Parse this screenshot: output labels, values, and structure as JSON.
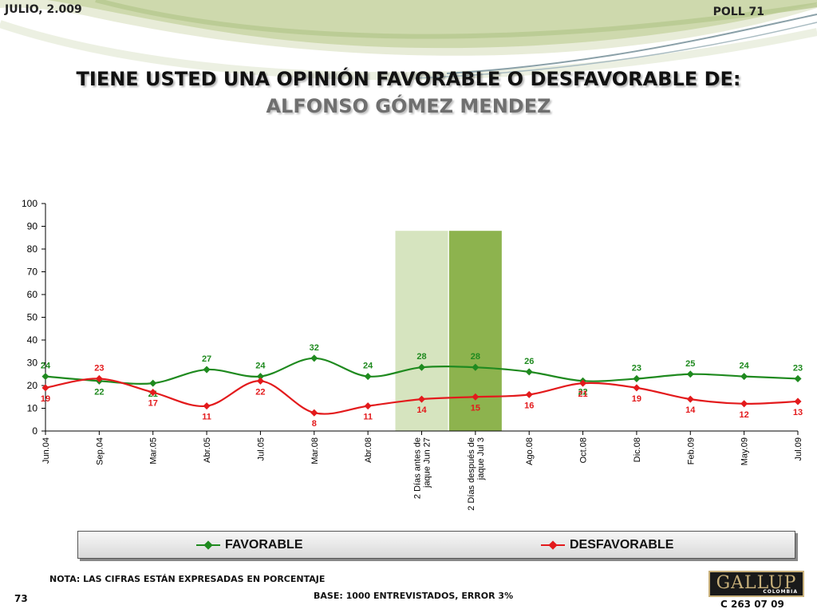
{
  "header": {
    "date": "JULIO, 2.009",
    "poll": "POLL 71"
  },
  "title": "TIENE USTED UNA OPINIÓN FAVORABLE O DESFAVORABLE DE:",
  "subtitle": "ALFONSO GÓMEZ MENDEZ",
  "colors": {
    "favorable": "#1f8a1f",
    "desfavorable": "#e31a1c",
    "highlight_light": "#d6e4bf",
    "highlight_dark": "#8db34e",
    "gridline": "#000000"
  },
  "chart_data": {
    "type": "line",
    "categories": [
      "Jun.04",
      "Sep.04",
      "Mar.05",
      "Abr.05",
      "Jul.05",
      "Mar.08",
      "Abr.08",
      "2 Días antes de jaque Jun 27",
      "2 Días después de jaque Jul 3",
      "Ago.08",
      "Oct.08",
      "Dic.08",
      "Feb.09",
      "May.09",
      "Jul.09"
    ],
    "category_lines": [
      [
        "Jun.04"
      ],
      [
        "Sep.04"
      ],
      [
        "Mar.05"
      ],
      [
        "Abr.05"
      ],
      [
        "Jul.05"
      ],
      [
        "Mar.08"
      ],
      [
        "Abr.08"
      ],
      [
        "2 Días antes de",
        "jaque Jun 27"
      ],
      [
        "2 Días después de",
        "jaque Jul 3"
      ],
      [
        "Ago.08"
      ],
      [
        "Oct.08"
      ],
      [
        "Dic.08"
      ],
      [
        "Feb.09"
      ],
      [
        "May.09"
      ],
      [
        "Jul.09"
      ]
    ],
    "series": [
      {
        "name": "FAVORABLE",
        "color": "#1f8a1f",
        "values": [
          24,
          22,
          21,
          27,
          24,
          32,
          24,
          28,
          28,
          26,
          22,
          23,
          25,
          24,
          23
        ],
        "label_position": [
          "above-left",
          "below",
          "below",
          "above",
          "above",
          "above",
          "above",
          "above",
          "above",
          "above",
          "below",
          "above",
          "above",
          "above",
          "above"
        ]
      },
      {
        "name": "DESFAVORABLE",
        "color": "#e31a1c",
        "values": [
          19,
          23,
          17,
          11,
          22,
          8,
          11,
          14,
          15,
          16,
          21,
          19,
          14,
          12,
          13
        ],
        "label_position": [
          "below-left",
          "above",
          "below",
          "below",
          "below",
          "below",
          "below",
          "below",
          "below",
          "below",
          "below",
          "below",
          "below",
          "below",
          "below"
        ]
      }
    ],
    "highlight_categories": [
      {
        "category": "2 Días antes de jaque Jun 27",
        "color": "#d6e4bf",
        "top_value": 88
      },
      {
        "category": "2 Días después de jaque Jul 3",
        "color": "#8db34e",
        "top_value": 88
      }
    ],
    "ylim": [
      0,
      100
    ],
    "yticks": [
      0,
      10,
      20,
      30,
      40,
      50,
      60,
      70,
      80,
      90,
      100
    ],
    "grid": false,
    "legend": "bottom",
    "smooth": true
  },
  "legend": {
    "favorable": "FAVORABLE",
    "desfavorable": "DESFAVORABLE"
  },
  "footer": {
    "nota": "NOTA: LAS CIFRAS ESTÁN EXPRESADAS EN PORCENTAJE",
    "base": "BASE: 1000 ENTREVISTADOS, ERROR 3%",
    "page": "73",
    "code": "C 263 07 09",
    "logo": "GALLUP",
    "logo_sub": "COLOMBIA"
  }
}
